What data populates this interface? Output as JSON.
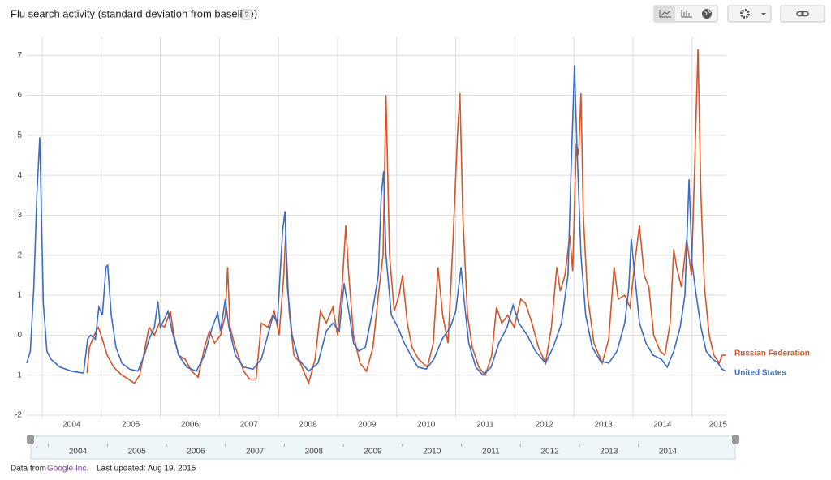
{
  "chart_data": {
    "type": "line",
    "title": "Flu search activity (standard deviation from baseline)",
    "help": "?",
    "xlim": [
      2003.74,
      2015.58
    ],
    "xticks": [
      {
        "value": 2004.5,
        "label": "2004"
      },
      {
        "value": 2005.5,
        "label": "2005"
      },
      {
        "value": 2006.5,
        "label": "2006"
      },
      {
        "value": 2007.5,
        "label": "2007"
      },
      {
        "value": 2008.5,
        "label": "2008"
      },
      {
        "value": 2009.5,
        "label": "2009"
      },
      {
        "value": 2010.5,
        "label": "2010"
      },
      {
        "value": 2011.5,
        "label": "2011"
      },
      {
        "value": 2012.5,
        "label": "2012"
      },
      {
        "value": 2013.5,
        "label": "2013"
      },
      {
        "value": 2014.5,
        "label": "2014"
      },
      {
        "value": 2015.44,
        "label": "2015"
      }
    ],
    "xgrid": [
      2004,
      2005,
      2006,
      2007,
      2008,
      2009,
      2010,
      2011,
      2012,
      2013,
      2014,
      2015
    ],
    "ylim": [
      -2,
      7.45
    ],
    "yticks": [
      -2,
      -1,
      0,
      1,
      2,
      3,
      4,
      5,
      6,
      7
    ],
    "grid": true,
    "series": [
      {
        "name": "Russian Federation",
        "color": "#d4562a",
        "x": [
          2004.76,
          2004.8,
          2004.88,
          2004.95,
          2005.02,
          2005.1,
          2005.21,
          2005.35,
          2005.46,
          2005.56,
          2005.65,
          2005.73,
          2005.81,
          2005.9,
          2005.98,
          2006.07,
          2006.17,
          2006.23,
          2006.31,
          2006.42,
          2006.53,
          2006.64,
          2006.75,
          2006.83,
          2006.92,
          2007.02,
          2007.1,
          2007.14,
          2007.18,
          2007.27,
          2007.41,
          2007.51,
          2007.62,
          2007.71,
          2007.82,
          2007.93,
          2008.01,
          2008.09,
          2008.12,
          2008.18,
          2008.26,
          2008.37,
          2008.51,
          2008.62,
          2008.71,
          2008.81,
          2008.92,
          2009.0,
          2009.08,
          2009.14,
          2009.19,
          2009.27,
          2009.38,
          2009.49,
          2009.6,
          2009.69,
          2009.77,
          2009.82,
          2009.88,
          2009.96,
          2010.04,
          2010.1,
          2010.18,
          2010.26,
          2010.37,
          2010.52,
          2010.62,
          2010.7,
          2010.78,
          2010.87,
          2010.95,
          2011.03,
          2011.07,
          2011.12,
          2011.2,
          2011.28,
          2011.39,
          2011.5,
          2011.61,
          2011.69,
          2011.78,
          2011.88,
          2011.99,
          2012.1,
          2012.18,
          2012.29,
          2012.4,
          2012.52,
          2012.62,
          2012.71,
          2012.77,
          2012.85,
          2012.93,
          2012.98,
          2013.04,
          2013.08,
          2013.12,
          2013.16,
          2013.23,
          2013.34,
          2013.48,
          2013.59,
          2013.68,
          2013.75,
          2013.86,
          2013.95,
          2014.03,
          2014.11,
          2014.19,
          2014.27,
          2014.35,
          2014.46,
          2014.54,
          2014.63,
          2014.69,
          2014.74,
          2014.82,
          2014.91,
          2014.99,
          2015.04,
          2015.1,
          2015.15,
          2015.21,
          2015.29,
          2015.37,
          2015.46,
          2015.51,
          2015.58
        ],
        "values": [
          -0.95,
          -0.3,
          0.0,
          0.2,
          -0.1,
          -0.5,
          -0.8,
          -1.0,
          -1.1,
          -1.2,
          -1.0,
          -0.4,
          0.2,
          0.0,
          0.3,
          0.2,
          0.6,
          0.0,
          -0.5,
          -0.6,
          -0.9,
          -1.05,
          -0.3,
          0.1,
          -0.2,
          0.0,
          0.5,
          1.7,
          0.2,
          -0.3,
          -0.9,
          -1.1,
          -1.1,
          0.3,
          0.2,
          0.6,
          0.0,
          1.5,
          2.5,
          0.6,
          -0.5,
          -0.7,
          -1.2,
          -0.6,
          0.6,
          0.3,
          0.7,
          0.0,
          1.3,
          2.75,
          1.5,
          0.0,
          -0.7,
          -0.9,
          -0.3,
          1.0,
          2.0,
          6.0,
          2.0,
          0.6,
          1.0,
          1.5,
          0.3,
          -0.3,
          -0.6,
          -0.8,
          -0.2,
          1.7,
          0.5,
          -0.2,
          2.2,
          5.0,
          6.05,
          3.0,
          0.5,
          -0.3,
          -0.8,
          -1.0,
          -0.5,
          0.7,
          0.3,
          0.5,
          0.2,
          0.9,
          0.8,
          0.3,
          -0.3,
          -0.7,
          0.2,
          1.7,
          1.1,
          1.5,
          2.5,
          1.6,
          4.8,
          4.5,
          6.05,
          3.0,
          1.0,
          -0.2,
          -0.7,
          -0.1,
          1.7,
          0.9,
          1.0,
          0.7,
          1.8,
          2.75,
          1.5,
          1.2,
          0.0,
          -0.4,
          -0.5,
          0.3,
          2.15,
          1.7,
          1.2,
          2.4,
          1.5,
          4.0,
          7.15,
          3.5,
          1.2,
          0.0,
          -0.5,
          -0.7,
          -0.5,
          -0.5
        ]
      },
      {
        "name": "United States",
        "color": "#3d6cc4",
        "x": [
          2003.74,
          2003.8,
          2003.86,
          2003.91,
          2003.96,
          2004.02,
          2004.08,
          2004.15,
          2004.3,
          2004.5,
          2004.7,
          2004.77,
          2004.82,
          2004.9,
          2004.96,
          2005.02,
          2005.08,
          2005.11,
          2005.17,
          2005.25,
          2005.35,
          2005.48,
          2005.62,
          2005.73,
          2005.81,
          2005.9,
          2005.96,
          2006.0,
          2006.07,
          2006.13,
          2006.2,
          2006.31,
          2006.45,
          2006.61,
          2006.75,
          2006.88,
          2006.97,
          2007.02,
          2007.1,
          2007.16,
          2007.27,
          2007.41,
          2007.57,
          2007.71,
          2007.82,
          2007.91,
          2007.98,
          2008.07,
          2008.11,
          2008.15,
          2008.23,
          2008.34,
          2008.51,
          2008.67,
          2008.81,
          2008.92,
          2009.03,
          2009.11,
          2009.19,
          2009.27,
          2009.36,
          2009.47,
          2009.58,
          2009.69,
          2009.74,
          2009.78,
          2009.82,
          2009.91,
          2010.02,
          2010.13,
          2010.24,
          2010.36,
          2010.5,
          2010.63,
          2010.77,
          2010.91,
          2011.0,
          2011.09,
          2011.14,
          2011.22,
          2011.34,
          2011.46,
          2011.6,
          2011.73,
          2011.87,
          2011.97,
          2012.07,
          2012.21,
          2012.35,
          2012.52,
          2012.65,
          2012.79,
          2012.9,
          2012.95,
          2013.01,
          2013.05,
          2013.12,
          2013.2,
          2013.31,
          2013.45,
          2013.59,
          2013.73,
          2013.86,
          2013.93,
          2013.97,
          2014.03,
          2014.11,
          2014.22,
          2014.34,
          2014.48,
          2014.58,
          2014.69,
          2014.8,
          2014.88,
          2014.95,
          2015.0,
          2015.07,
          2015.15,
          2015.24,
          2015.35,
          2015.44,
          2015.51,
          2015.57
        ],
        "values": [
          -0.7,
          -0.4,
          1.2,
          3.5,
          4.95,
          0.8,
          -0.4,
          -0.6,
          -0.8,
          -0.9,
          -0.95,
          -0.1,
          0.0,
          -0.1,
          0.7,
          0.5,
          1.7,
          1.75,
          0.5,
          -0.3,
          -0.7,
          -0.85,
          -0.9,
          -0.5,
          -0.1,
          0.2,
          0.85,
          0.2,
          0.4,
          0.6,
          0.1,
          -0.5,
          -0.8,
          -0.9,
          -0.5,
          0.2,
          0.55,
          0.1,
          0.9,
          0.2,
          -0.5,
          -0.8,
          -0.85,
          -0.6,
          0.0,
          0.5,
          0.3,
          2.6,
          3.1,
          1.2,
          0.0,
          -0.6,
          -0.9,
          -0.7,
          0.1,
          0.3,
          0.1,
          1.3,
          0.6,
          -0.2,
          -0.4,
          -0.3,
          0.5,
          1.5,
          3.5,
          4.1,
          2.0,
          0.5,
          0.2,
          -0.2,
          -0.5,
          -0.8,
          -0.85,
          -0.6,
          -0.1,
          0.2,
          0.6,
          1.7,
          0.9,
          -0.2,
          -0.8,
          -1.0,
          -0.8,
          -0.2,
          0.2,
          0.75,
          0.3,
          0.0,
          -0.4,
          -0.7,
          -0.3,
          0.3,
          1.5,
          4.0,
          6.75,
          4.8,
          2.0,
          0.5,
          -0.3,
          -0.65,
          -0.7,
          -0.4,
          0.3,
          1.2,
          2.4,
          1.5,
          0.3,
          -0.2,
          -0.5,
          -0.6,
          -0.8,
          -0.4,
          0.2,
          1.0,
          3.9,
          1.8,
          1.0,
          0.2,
          -0.4,
          -0.6,
          -0.7,
          -0.85,
          -0.9
        ]
      }
    ]
  },
  "navigator": {
    "labels": [
      "2004",
      "2005",
      "2006",
      "2007",
      "2008",
      "2009",
      "2010",
      "2011",
      "2012",
      "2013",
      "2014"
    ]
  },
  "footer": {
    "prefix": "Data from",
    "source": "Google Inc.",
    "updated": "Last updated: Aug 19, 2015"
  }
}
